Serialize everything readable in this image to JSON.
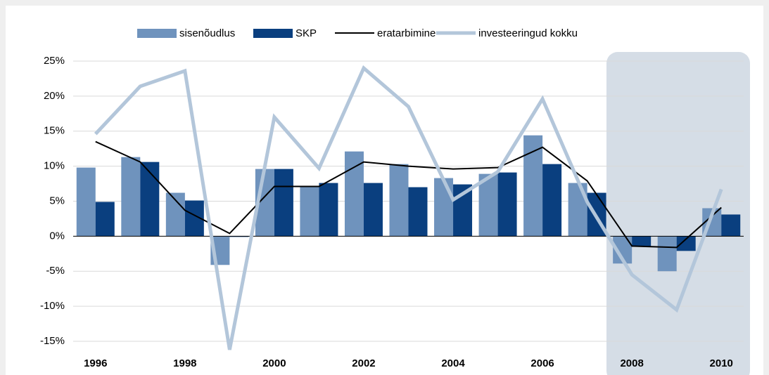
{
  "chart_data": {
    "type": "bar",
    "categories": [
      "1996",
      null,
      "1998",
      null,
      "2000",
      null,
      "2002",
      null,
      "2004",
      null,
      "2006",
      null,
      "2008",
      null,
      "2010"
    ],
    "series": [
      {
        "name": "sisenõudlus",
        "type": "bar",
        "color": "#6f93bd",
        "values": [
          9.8,
          11.3,
          6.2,
          -4.1,
          9.6,
          7.1,
          12.1,
          10.3,
          8.3,
          8.9,
          14.4,
          7.6,
          -3.9,
          -5.0,
          4.0
        ]
      },
      {
        "name": "SKP",
        "type": "bar",
        "color": "#0a3f7f",
        "values": [
          4.9,
          10.6,
          5.1,
          -0.1,
          9.6,
          7.6,
          7.6,
          7.0,
          7.4,
          9.1,
          10.3,
          6.2,
          -1.5,
          -2.1,
          3.1
        ]
      },
      {
        "name": "eratarbimine",
        "type": "line",
        "color": "#000000",
        "values": [
          13.5,
          10.6,
          3.7,
          0.4,
          7.1,
          7.1,
          10.6,
          10.0,
          9.6,
          9.8,
          12.7,
          7.9,
          -1.4,
          -1.6,
          4.1
        ]
      },
      {
        "name": "investeeringud kokku",
        "type": "line",
        "color": "#b3c6da",
        "values": [
          14.6,
          21.4,
          23.6,
          -16.2,
          17.0,
          9.7,
          24.0,
          18.5,
          5.2,
          9.2,
          19.6,
          4.9,
          -5.5,
          -10.5,
          6.7
        ]
      }
    ],
    "ylim": [
      -15,
      25
    ],
    "yticks": [
      {
        "value": -15,
        "label": "-15%"
      },
      {
        "value": -10,
        "label": "-10%"
      },
      {
        "value": -5,
        "label": "-5%"
      },
      {
        "value": 0,
        "label": "0%"
      },
      {
        "value": 5,
        "label": "5%"
      },
      {
        "value": 10,
        "label": "10%"
      },
      {
        "value": 15,
        "label": "15%"
      },
      {
        "value": 20,
        "label": "20%"
      },
      {
        "value": 25,
        "label": "25%"
      }
    ],
    "grid": true
  }
}
